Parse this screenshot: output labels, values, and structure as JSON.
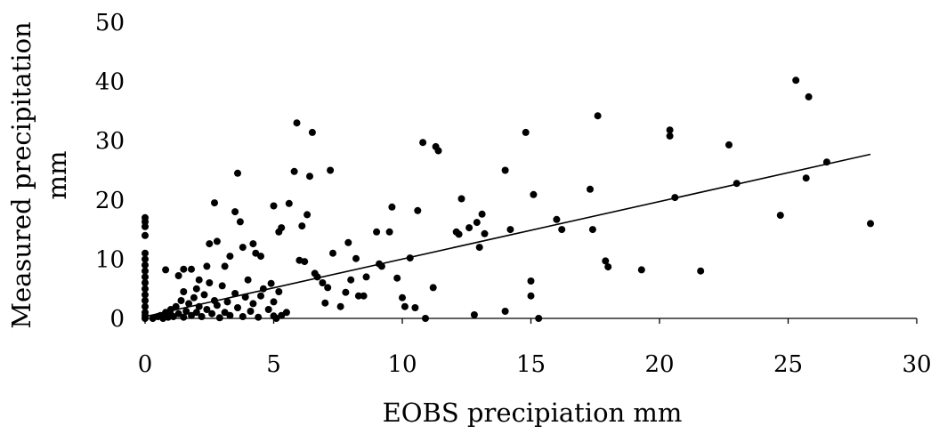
{
  "chart_data": {
    "type": "scatter",
    "title": "",
    "xlabel": "EOBS precipiation mm",
    "ylabel_lines": [
      "Measured precipitation",
      "mm"
    ],
    "xlim": [
      0,
      30
    ],
    "ylim": [
      0,
      50
    ],
    "x_ticks": [
      0,
      5,
      10,
      15,
      20,
      25,
      30
    ],
    "y_ticks": [
      0,
      10,
      20,
      30,
      40,
      50
    ],
    "grid": false,
    "legend": "none",
    "colors": {
      "points": "#000000",
      "trendline": "#000000",
      "axis": "#000000"
    },
    "trendline": {
      "type": "linear",
      "x": [
        0,
        28.2
      ],
      "y": [
        0.3,
        27.7
      ]
    },
    "points": [
      [
        0,
        17
      ],
      [
        0,
        16.3
      ],
      [
        0,
        15.5
      ],
      [
        0,
        14
      ],
      [
        0,
        11
      ],
      [
        0,
        10
      ],
      [
        0,
        9
      ],
      [
        0,
        8
      ],
      [
        0,
        7
      ],
      [
        0,
        6
      ],
      [
        0,
        5
      ],
      [
        0,
        4
      ],
      [
        0,
        3
      ],
      [
        0,
        2
      ],
      [
        0,
        1
      ],
      [
        0,
        0.5
      ],
      [
        0,
        0
      ],
      [
        0.3,
        0
      ],
      [
        0.5,
        0.3
      ],
      [
        0.6,
        0.5
      ],
      [
        0.7,
        0
      ],
      [
        0.8,
        1
      ],
      [
        0.9,
        0.2
      ],
      [
        1,
        0.6
      ],
      [
        1,
        1.5
      ],
      [
        1.1,
        0.3
      ],
      [
        1.2,
        2
      ],
      [
        1.3,
        0.8
      ],
      [
        1.4,
        3
      ],
      [
        1.5,
        0.2
      ],
      [
        1.5,
        4.5
      ],
      [
        1.6,
        1.2
      ],
      [
        1.7,
        2.5
      ],
      [
        1.8,
        0.5
      ],
      [
        1.9,
        3.5
      ],
      [
        2,
        1
      ],
      [
        2,
        5
      ],
      [
        2.1,
        2
      ],
      [
        2.2,
        0.3
      ],
      [
        2.3,
        4
      ],
      [
        2.4,
        1.5
      ],
      [
        2.5,
        6
      ],
      [
        2.6,
        0.8
      ],
      [
        2.7,
        3
      ],
      [
        2.8,
        2.2
      ],
      [
        2.9,
        0.1
      ],
      [
        3,
        5.5
      ],
      [
        3.1,
        1
      ],
      [
        3.2,
        2.8
      ],
      [
        3.3,
        0.5
      ],
      [
        3.5,
        4.2
      ],
      [
        3.6,
        1.8
      ],
      [
        3.8,
        0.3
      ],
      [
        3.9,
        3.6
      ],
      [
        4,
        6.5
      ],
      [
        4.1,
        1.2
      ],
      [
        4.2,
        2.5
      ],
      [
        4.4,
        0.2
      ],
      [
        4.5,
        3.8
      ],
      [
        4.6,
        5
      ],
      [
        4.8,
        1.5
      ],
      [
        5,
        0.4
      ],
      [
        5,
        2.8
      ],
      [
        5.1,
        0
      ],
      [
        5.2,
        4.5
      ],
      [
        5.3,
        0.5
      ],
      [
        5.5,
        1
      ],
      [
        0.8,
        8.2
      ],
      [
        1.3,
        7.2
      ],
      [
        1.5,
        8.3
      ],
      [
        1.8,
        8.3
      ],
      [
        2.1,
        6.5
      ],
      [
        2.4,
        8.8
      ],
      [
        2.5,
        12.6
      ],
      [
        2.7,
        19.5
      ],
      [
        2.8,
        13
      ],
      [
        3.1,
        8.8
      ],
      [
        3.3,
        10.5
      ],
      [
        3.5,
        18
      ],
      [
        3.6,
        24.5
      ],
      [
        3.7,
        16.3
      ],
      [
        3.8,
        12
      ],
      [
        4.2,
        12.6
      ],
      [
        4.3,
        11
      ],
      [
        4.5,
        10.5
      ],
      [
        4.9,
        5.9
      ],
      [
        5,
        19
      ],
      [
        5.2,
        14.6
      ],
      [
        5.3,
        15.3
      ],
      [
        5.6,
        19.4
      ],
      [
        5.8,
        24.8
      ],
      [
        5.9,
        33
      ],
      [
        6,
        9.8
      ],
      [
        6.1,
        15.6
      ],
      [
        6.2,
        9.6
      ],
      [
        6.3,
        17.5
      ],
      [
        6.4,
        24
      ],
      [
        6.5,
        31.4
      ],
      [
        6.6,
        7.6
      ],
      [
        6.7,
        7
      ],
      [
        6.9,
        6
      ],
      [
        7,
        2.6
      ],
      [
        7.1,
        5.2
      ],
      [
        7.2,
        25
      ],
      [
        7.3,
        11
      ],
      [
        7.6,
        2
      ],
      [
        7.8,
        4.4
      ],
      [
        7.9,
        12.8
      ],
      [
        8,
        6.5
      ],
      [
        8.2,
        10.1
      ],
      [
        8.3,
        3.8
      ],
      [
        8.5,
        3.8
      ],
      [
        8.6,
        7
      ],
      [
        9,
        14.6
      ],
      [
        9.1,
        9.2
      ],
      [
        9.2,
        8.8
      ],
      [
        9.5,
        14.6
      ],
      [
        9.6,
        18.8
      ],
      [
        9.8,
        6.8
      ],
      [
        10,
        3.5
      ],
      [
        10.1,
        2
      ],
      [
        10.3,
        10.2
      ],
      [
        10.5,
        1.8
      ],
      [
        10.6,
        18.2
      ],
      [
        10.8,
        29.7
      ],
      [
        10.9,
        0
      ],
      [
        11.2,
        5.2
      ],
      [
        11.3,
        29
      ],
      [
        11.4,
        28.3
      ],
      [
        12.1,
        14.6
      ],
      [
        12.2,
        14.2
      ],
      [
        12.3,
        20.2
      ],
      [
        12.6,
        15.3
      ],
      [
        12.8,
        0.6
      ],
      [
        12.9,
        16.2
      ],
      [
        13,
        12
      ],
      [
        13.1,
        17.6
      ],
      [
        13.2,
        14.3
      ],
      [
        14,
        1.2
      ],
      [
        14,
        25
      ],
      [
        14.2,
        15
      ],
      [
        14.8,
        31.4
      ],
      [
        15,
        3.8
      ],
      [
        15,
        6.3
      ],
      [
        15.1,
        20.9
      ],
      [
        15.3,
        0
      ],
      [
        16,
        16.7
      ],
      [
        16.2,
        15
      ],
      [
        17.3,
        21.8
      ],
      [
        17.4,
        15
      ],
      [
        17.6,
        34.2
      ],
      [
        17.9,
        9.7
      ],
      [
        18,
        8.7
      ],
      [
        19.3,
        8.2
      ],
      [
        20.4,
        31.8
      ],
      [
        20.4,
        30.8
      ],
      [
        20.6,
        20.4
      ],
      [
        21.6,
        8
      ],
      [
        22.7,
        29.3
      ],
      [
        23,
        22.8
      ],
      [
        24.7,
        17.4
      ],
      [
        25.3,
        40.2
      ],
      [
        25.7,
        23.7
      ],
      [
        25.8,
        37.4
      ],
      [
        26.5,
        26.4
      ],
      [
        28.2,
        16
      ]
    ]
  }
}
